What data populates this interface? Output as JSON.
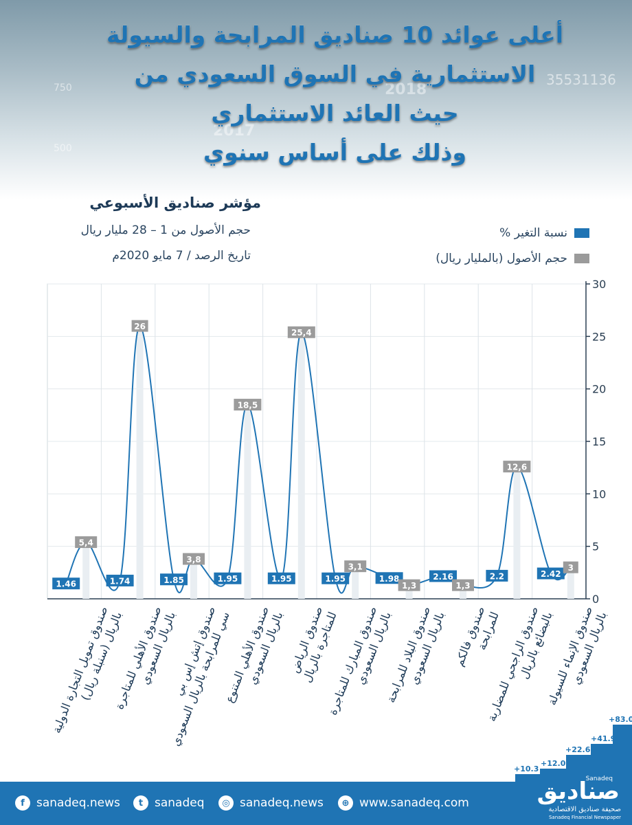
{
  "header": {
    "title_lines": [
      "أعلى عوائد 10 صناديق المرابحة والسيولة",
      "الاستثمارية في السوق السعودي من",
      "حيث العائد الاستثماري",
      "وذلك على أساس سنوي"
    ],
    "bg_numbers": [
      "750",
      "500",
      "35531136"
    ],
    "bg_years": [
      "2018",
      "2017"
    ]
  },
  "subtitle": "مؤشر صناديق الأسبوعي",
  "info": {
    "line1": "حجم الأصول من 1 – 28 مليار ريال",
    "line2": "تاريخ الرصد / 7 مايو 2020م"
  },
  "legend": {
    "change": "نسبة التغير %",
    "assets": "حجم الأصول (بالمليار ريال)"
  },
  "colors": {
    "accent": "#1f74b4",
    "gray": "#9b9b9b",
    "bar_light": "#e9eef2"
  },
  "chart_data": {
    "type": "bar",
    "categories": [
      "صندوق تمويل التجارة الدولية بالريال (سنبلة ريال)",
      "صندوق الأهلي للمتاجرة بالريال السعودي",
      "صندوق إتش إس بي سي للمرابحة بالريال السعودي",
      "صندوق الأهلي المتنوع بالريال السعودي",
      "صندوق الرياض للمتاجرة بالريال",
      "صندوق المبارك للمتاجرة بالريال السعودي",
      "صندوق البلاد للمرابحة بالريال السعودي",
      "صندوق فالكم للمرابحة",
      "صندوق الراجحي للمضاربة بالبضائع بالريال",
      "صندوق الإنماء للسيولة بالريال السعودي"
    ],
    "series": [
      {
        "name": "نسبة التغير %",
        "values": [
          1.46,
          1.74,
          1.85,
          1.95,
          1.95,
          1.95,
          1.98,
          2.16,
          2.2,
          2.42
        ],
        "labels": [
          "1.46",
          "1.74",
          "1.85",
          "1.95",
          "1.95",
          "1.95",
          "1.98",
          "2.16",
          "2.2",
          "2.42"
        ]
      },
      {
        "name": "حجم الأصول (بالمليار ريال)",
        "values": [
          5.4,
          26,
          3.8,
          18.5,
          25.4,
          3.1,
          1.3,
          1.3,
          12.6,
          3
        ],
        "labels": [
          "5,4",
          "26",
          "3,8",
          "18,5",
          "25,4",
          "3,1",
          "1,3",
          "1,3",
          "12,6",
          "3"
        ]
      }
    ],
    "y_ticks": [
      "0",
      "5",
      "10",
      "15",
      "20",
      "25",
      "30"
    ],
    "ylim": [
      0,
      30
    ],
    "axis_position": "right",
    "grid": true
  },
  "growth_graphic": {
    "labels": [
      "+10.3",
      "+12.0",
      "+22.6",
      "+41.9",
      "+83.0"
    ]
  },
  "footer": {
    "facebook": "sanadeq.news",
    "twitter": "sanadeq",
    "instagram": "sanadeq.news",
    "website": "www.sanadeq.com",
    "logo_ar": "صناديق",
    "logo_en": "Sanadeq",
    "logo_sub_ar": "صحيفة صناديق الاقتصادية",
    "logo_sub_en": "Sanadeq Financial Newspaper"
  }
}
